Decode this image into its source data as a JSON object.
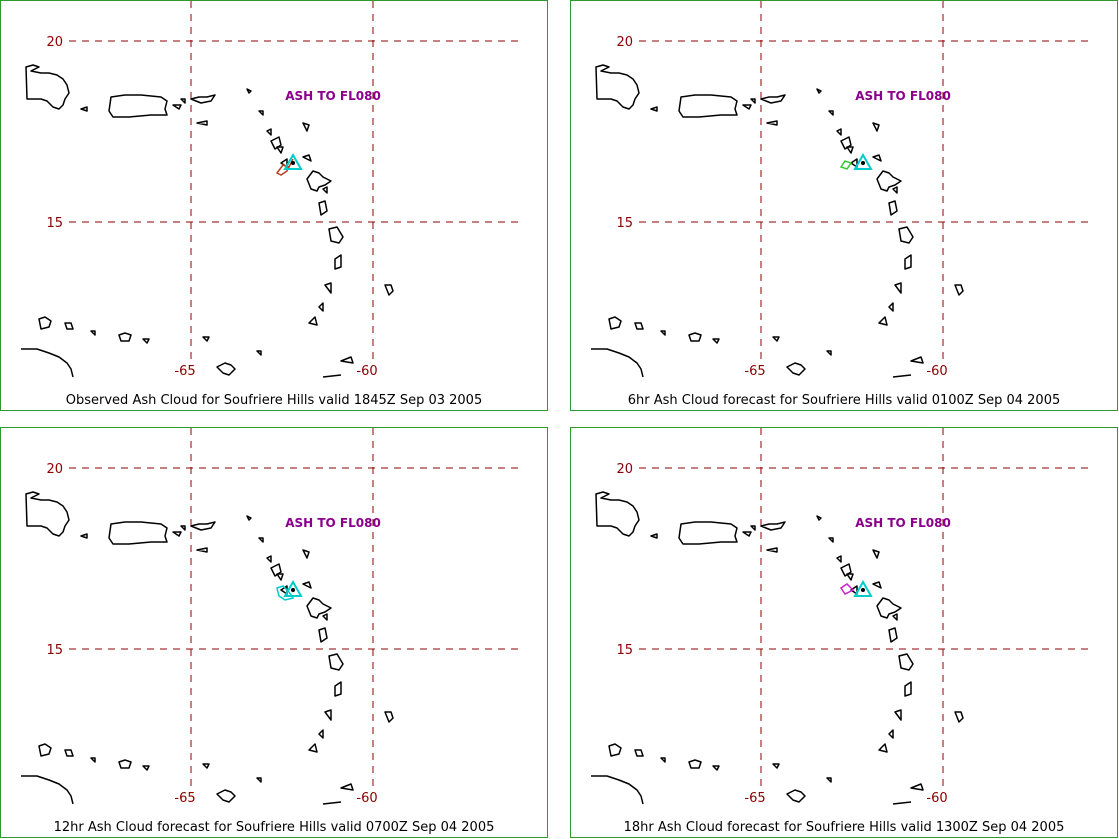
{
  "grid": {
    "lat_labels": [
      "20",
      "15"
    ],
    "lon_labels": [
      "-65",
      "-60"
    ],
    "line_color": "#8b0000"
  },
  "panels": [
    {
      "ash_label": "ASH TO FL080",
      "caption": "Observed Ash Cloud for Soufriere  Hills valid 1845Z Sep 03 2005",
      "cloud_color": "#b5401b"
    },
    {
      "ash_label": "ASH TO FL080",
      "caption": "6hr Ash Cloud forecast for Soufriere  Hills valid 0100Z Sep 04 2005",
      "cloud_color": "#33cc33"
    },
    {
      "ash_label": "ASH TO FL080",
      "caption": "12hr Ash Cloud forecast for Soufriere  Hills valid 0700Z Sep 04 2005",
      "cloud_color": "#00cccc"
    },
    {
      "ash_label": "ASH TO FL080",
      "caption": "18hr Ash Cloud forecast for Soufriere  Hills valid 1300Z Sep 04 2005",
      "cloud_color": "#cc22cc"
    }
  ],
  "volcano_marker_color": "#00cccc"
}
